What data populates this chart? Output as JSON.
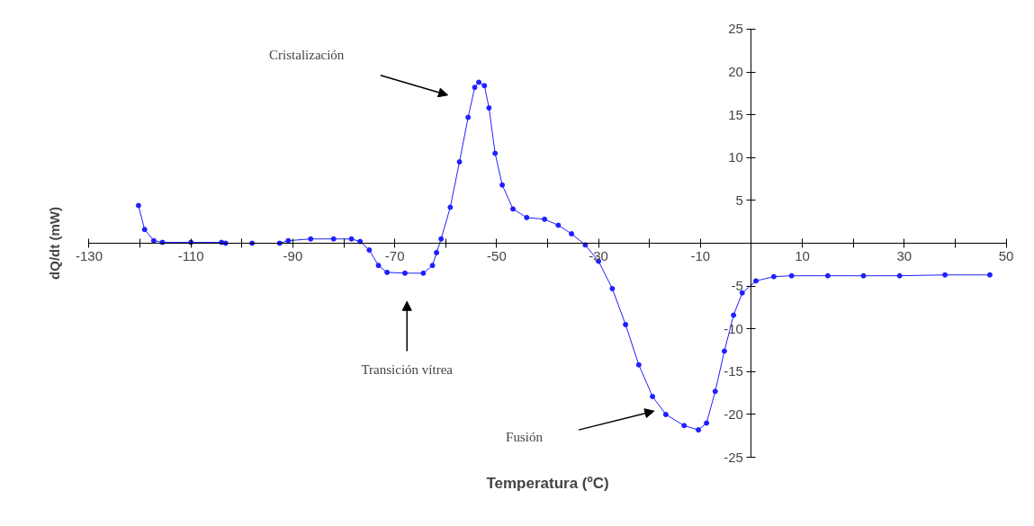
{
  "chart_data": {
    "type": "line",
    "xlabel": "Temperatura (ºC)",
    "ylabel": "dQ/dt (mW)",
    "x": [
      -120.3,
      -119.1,
      -117.3,
      -115.6,
      -110,
      -104,
      -103.2,
      -98,
      -92.6,
      -90.9,
      -86.5,
      -82,
      -78.5,
      -76.8,
      -75,
      -73.2,
      -71.5,
      -68,
      -64.4,
      -62.6,
      -61.8,
      -60.9,
      -59.1,
      -57.3,
      -55.6,
      -54.3,
      -53.5,
      -52.4,
      -51.5,
      -50.3,
      -48.9,
      -46.8,
      -44.1,
      -40.6,
      -37.9,
      -35.3,
      -32.6,
      -30,
      -27.3,
      -24.7,
      -22.1,
      -19.4,
      -16.8,
      -13.2,
      -10.4,
      -8.8,
      -7.1,
      -5.3,
      -3.5,
      -1.8,
      0.9,
      4.4,
      7.9,
      15,
      22,
      29.1,
      38,
      46.8
    ],
    "series": [
      {
        "color": "#1f1fff",
        "values": [
          4.4,
          1.6,
          0.3,
          0.1,
          0.1,
          0.1,
          0,
          0,
          0,
          0.3,
          0.5,
          0.5,
          0.5,
          0.2,
          -0.8,
          -2.6,
          -3.4,
          -3.5,
          -3.5,
          -2.6,
          -1.1,
          0.5,
          4.2,
          9.5,
          14.7,
          18.2,
          18.8,
          18.4,
          15.8,
          10.5,
          6.8,
          4,
          3,
          2.8,
          2.1,
          1.1,
          -0.2,
          -2.1,
          -5.3,
          -9.5,
          -14.2,
          -17.9,
          -20,
          -21.3,
          -21.8,
          -21,
          -17.3,
          -12.6,
          -8.4,
          -5.8,
          -4.4,
          -3.9,
          -3.8,
          -3.8,
          -3.8,
          -3.8,
          -3.7,
          -3.7
        ]
      }
    ],
    "marker": "circle",
    "line_style": "solid",
    "grid": false,
    "xlim": [
      -130,
      50
    ],
    "ylim": [
      -25,
      25
    ],
    "xticks": [
      -130,
      {
        "value": -120,
        "label": null
      },
      -110,
      {
        "value": -100,
        "label": null
      },
      -90,
      {
        "value": -80,
        "label": null
      },
      -70,
      {
        "value": -60,
        "label": null
      },
      -50,
      {
        "value": -40,
        "label": null
      },
      -30,
      {
        "value": -20,
        "label": null
      },
      -10,
      {
        "value": 0,
        "label": null
      },
      10,
      {
        "value": 20,
        "label": null
      },
      30,
      {
        "value": 40,
        "label": null
      },
      50
    ],
    "yticks": [
      -25,
      -20,
      -15,
      -10,
      -5,
      {
        "value": 0,
        "label": null
      },
      5,
      10,
      15,
      20,
      25
    ],
    "annotations": [
      "Cristalización",
      "Transición vítrea",
      "Fusión"
    ]
  }
}
